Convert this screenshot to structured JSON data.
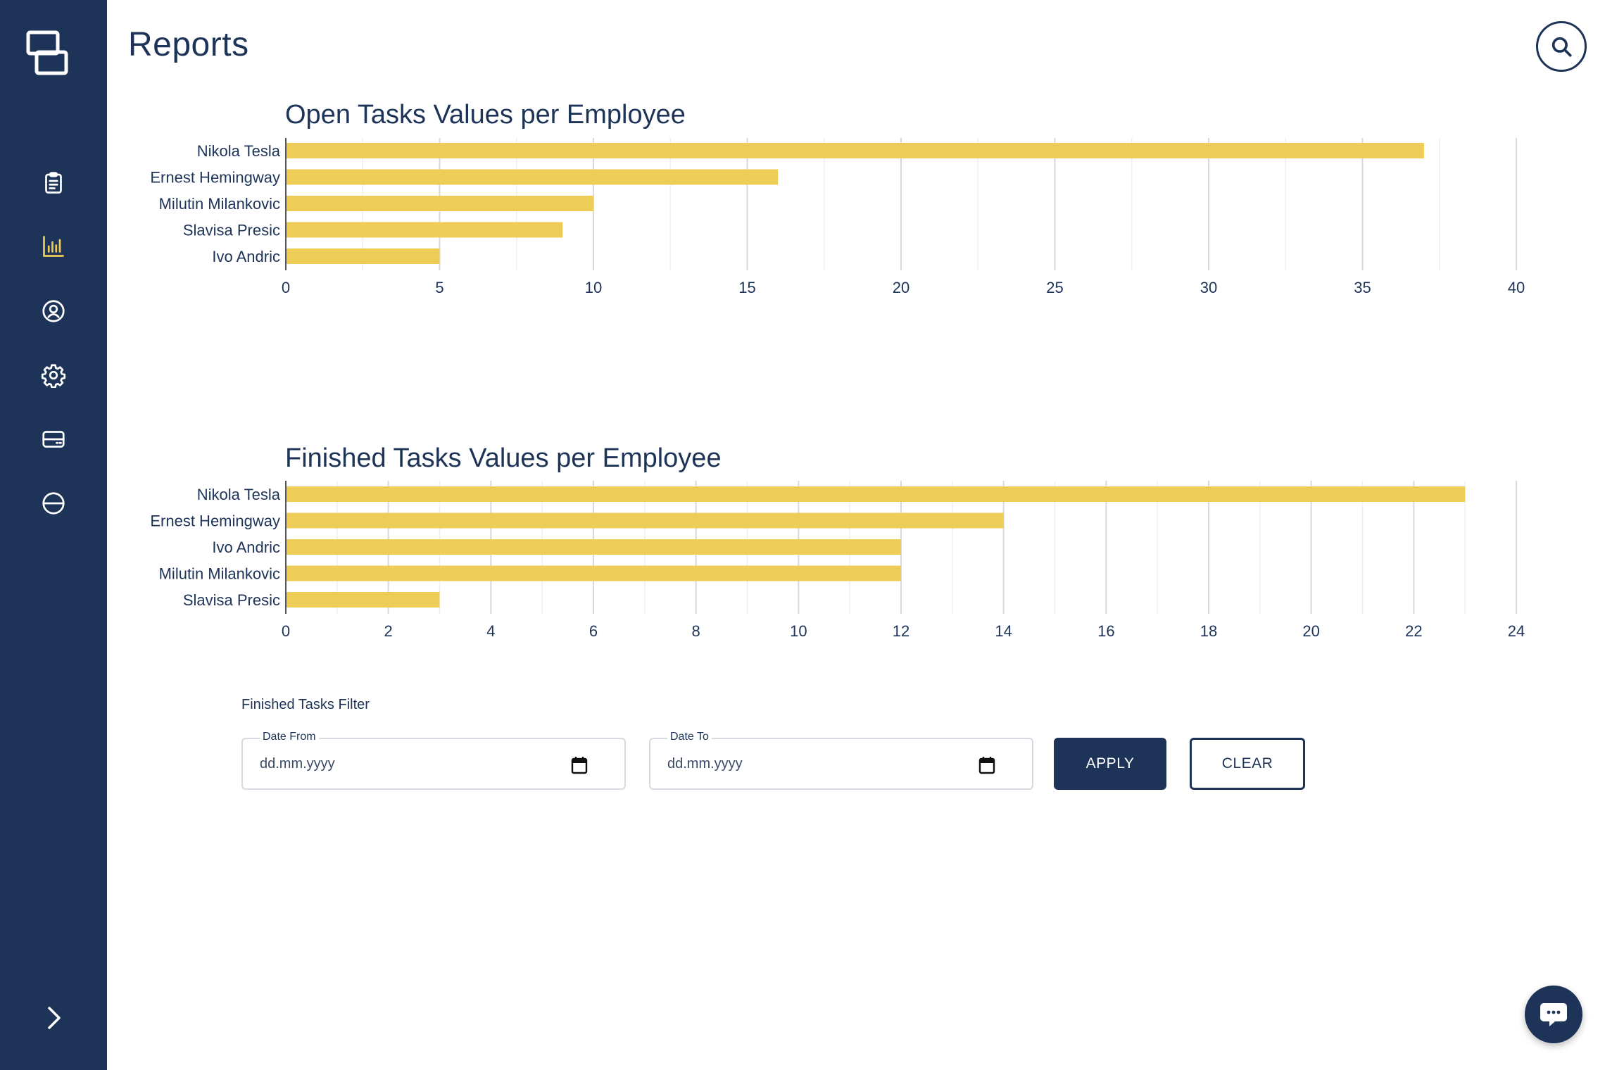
{
  "header": {
    "title": "Reports"
  },
  "sidebar": {
    "items": [
      {
        "icon": "clipboard-icon",
        "active": false
      },
      {
        "icon": "bar-chart-icon",
        "active": true
      },
      {
        "icon": "user-circle-icon",
        "active": false
      },
      {
        "icon": "gear-icon",
        "active": false
      },
      {
        "icon": "card-icon",
        "active": false
      },
      {
        "icon": "circle-minus-icon",
        "active": false
      }
    ]
  },
  "colors": {
    "sidebar": "#1e3358",
    "bar": "#edcd57",
    "active_icon": "#edcd57",
    "grid": "#e3e3e3"
  },
  "chart_data": [
    {
      "type": "bar",
      "orientation": "horizontal",
      "title": "Open Tasks Values per Employee",
      "categories": [
        "Nikola Tesla",
        "Ernest Hemingway",
        "Milutin Milankovic",
        "Slavisa Presic",
        "Ivo Andric"
      ],
      "values": [
        37,
        16,
        10,
        9,
        5
      ],
      "xlim": [
        0,
        40
      ],
      "ticks": [
        0,
        5,
        10,
        15,
        20,
        25,
        30,
        35,
        40
      ],
      "grid": true
    },
    {
      "type": "bar",
      "orientation": "horizontal",
      "title": "Finished Tasks Values per Employee",
      "categories": [
        "Nikola Tesla",
        "Ernest Hemingway",
        "Ivo Andric",
        "Milutin Milankovic",
        "Slavisa Presic"
      ],
      "values": [
        23,
        14,
        12,
        12,
        3
      ],
      "xlim": [
        0,
        24
      ],
      "ticks": [
        0,
        2,
        4,
        6,
        8,
        10,
        12,
        14,
        16,
        18,
        20,
        22,
        24
      ],
      "grid": true
    }
  ],
  "filter": {
    "title": "Finished Tasks Filter",
    "date_from": {
      "label": "Date From",
      "placeholder": "dd.mm.yyyy"
    },
    "date_to": {
      "label": "Date To",
      "placeholder": "dd.mm.yyyy"
    },
    "apply_label": "APPLY",
    "clear_label": "CLEAR"
  }
}
